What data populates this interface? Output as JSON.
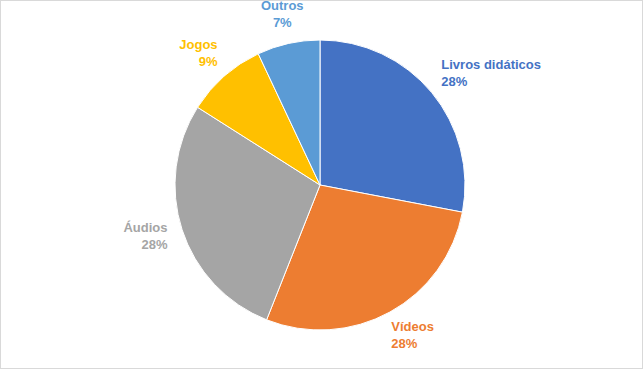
{
  "chart_data": {
    "type": "pie",
    "categories": [
      "Livros didáticos",
      "Vídeos",
      "Áudios",
      "Jogos",
      "Outros"
    ],
    "values": [
      28,
      28,
      28,
      9,
      7
    ],
    "value_labels": [
      "28%",
      "28%",
      "28%",
      "9%",
      "7%"
    ],
    "colors": [
      "#4472c4",
      "#ed7d31",
      "#a5a5a5",
      "#ffc000",
      "#5b9bd5"
    ],
    "data_labels": true
  }
}
